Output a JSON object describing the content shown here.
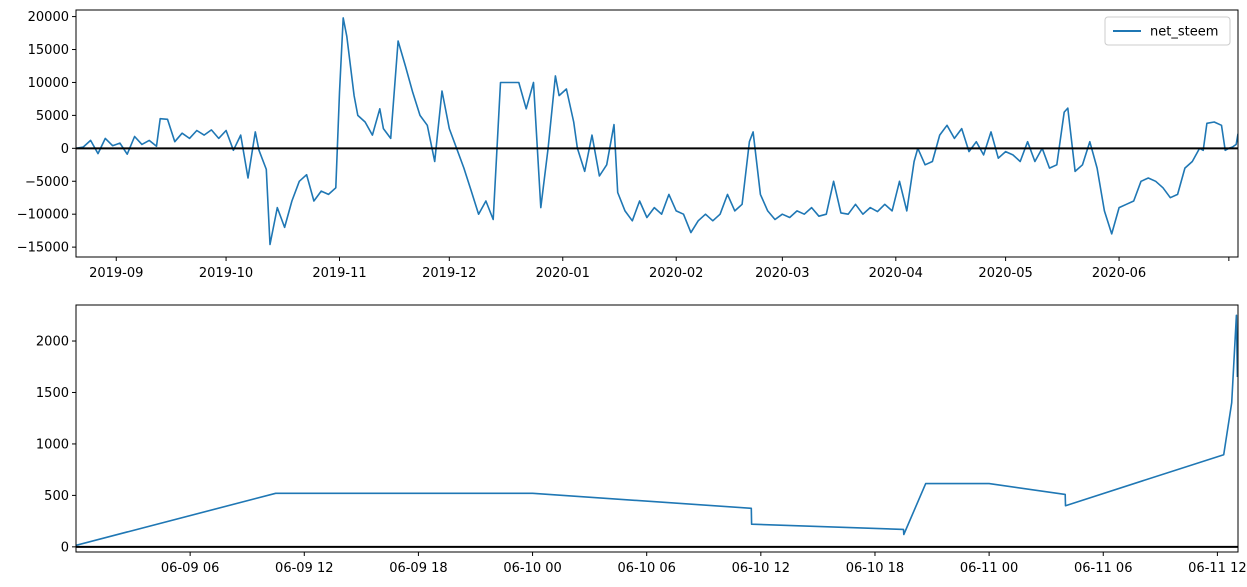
{
  "chart_data": [
    {
      "type": "line",
      "legend": {
        "position": "upper right",
        "entries": [
          "net_steem"
        ]
      },
      "series": [
        {
          "name": "net_steem",
          "color": "#1f77b4",
          "points": [
            [
              "2019-08-21",
              0
            ],
            [
              "2019-08-23",
              200
            ],
            [
              "2019-08-25",
              1200
            ],
            [
              "2019-08-27",
              -800
            ],
            [
              "2019-08-29",
              1500
            ],
            [
              "2019-08-31",
              400
            ],
            [
              "2019-09-02",
              800
            ],
            [
              "2019-09-04",
              -900
            ],
            [
              "2019-09-06",
              1800
            ],
            [
              "2019-09-08",
              600
            ],
            [
              "2019-09-10",
              1200
            ],
            [
              "2019-09-12",
              300
            ],
            [
              "2019-09-13",
              4500
            ],
            [
              "2019-09-15",
              4400
            ],
            [
              "2019-09-17",
              1000
            ],
            [
              "2019-09-19",
              2300
            ],
            [
              "2019-09-21",
              1500
            ],
            [
              "2019-09-23",
              2700
            ],
            [
              "2019-09-25",
              2000
            ],
            [
              "2019-09-27",
              2800
            ],
            [
              "2019-09-29",
              1500
            ],
            [
              "2019-10-01",
              2700
            ],
            [
              "2019-10-03",
              -300
            ],
            [
              "2019-10-05",
              2000
            ],
            [
              "2019-10-07",
              -4500
            ],
            [
              "2019-10-09",
              2500
            ],
            [
              "2019-10-10",
              -300
            ],
            [
              "2019-10-12",
              -3200
            ],
            [
              "2019-10-13",
              -14600
            ],
            [
              "2019-10-15",
              -9000
            ],
            [
              "2019-10-17",
              -12000
            ],
            [
              "2019-10-19",
              -8000
            ],
            [
              "2019-10-21",
              -5000
            ],
            [
              "2019-10-23",
              -4000
            ],
            [
              "2019-10-25",
              -8000
            ],
            [
              "2019-10-27",
              -6500
            ],
            [
              "2019-10-29",
              -7000
            ],
            [
              "2019-10-31",
              -6000
            ],
            [
              "2019-11-01",
              8500
            ],
            [
              "2019-11-02",
              19800
            ],
            [
              "2019-11-03",
              17000
            ],
            [
              "2019-11-05",
              8000
            ],
            [
              "2019-11-06",
              5000
            ],
            [
              "2019-11-08",
              4000
            ],
            [
              "2019-11-10",
              2000
            ],
            [
              "2019-11-12",
              6000
            ],
            [
              "2019-11-13",
              3000
            ],
            [
              "2019-11-15",
              1500
            ],
            [
              "2019-11-17",
              16300
            ],
            [
              "2019-11-19",
              12500
            ],
            [
              "2019-11-21",
              8500
            ],
            [
              "2019-11-23",
              5000
            ],
            [
              "2019-11-25",
              3500
            ],
            [
              "2019-11-27",
              -2000
            ],
            [
              "2019-11-29",
              8700
            ],
            [
              "2019-12-01",
              3000
            ],
            [
              "2019-12-03",
              0
            ],
            [
              "2019-12-05",
              -3000
            ],
            [
              "2019-12-07",
              -6500
            ],
            [
              "2019-12-09",
              -10000
            ],
            [
              "2019-12-11",
              -8000
            ],
            [
              "2019-12-13",
              -10800
            ],
            [
              "2019-12-15",
              10000
            ],
            [
              "2019-12-18",
              10000
            ],
            [
              "2019-12-20",
              10000
            ],
            [
              "2019-12-22",
              6000
            ],
            [
              "2019-12-24",
              10000
            ],
            [
              "2019-12-26",
              -9000
            ],
            [
              "2019-12-28",
              0
            ],
            [
              "2019-12-30",
              11000
            ],
            [
              "2019-12-31",
              8000
            ],
            [
              "2020-01-02",
              9000
            ],
            [
              "2020-01-04",
              4000
            ],
            [
              "2020-01-05",
              0
            ],
            [
              "2020-01-07",
              -3500
            ],
            [
              "2020-01-09",
              2000
            ],
            [
              "2020-01-11",
              -4200
            ],
            [
              "2020-01-13",
              -2500
            ],
            [
              "2020-01-15",
              3600
            ],
            [
              "2020-01-16",
              -6700
            ],
            [
              "2020-01-18",
              -9500
            ],
            [
              "2020-01-20",
              -11000
            ],
            [
              "2020-01-22",
              -8000
            ],
            [
              "2020-01-24",
              -10500
            ],
            [
              "2020-01-26",
              -9000
            ],
            [
              "2020-01-28",
              -10000
            ],
            [
              "2020-01-30",
              -7000
            ],
            [
              "2020-02-01",
              -9500
            ],
            [
              "2020-02-03",
              -10000
            ],
            [
              "2020-02-05",
              -12800
            ],
            [
              "2020-02-07",
              -11000
            ],
            [
              "2020-02-09",
              -10000
            ],
            [
              "2020-02-11",
              -11000
            ],
            [
              "2020-02-13",
              -10000
            ],
            [
              "2020-02-15",
              -7000
            ],
            [
              "2020-02-17",
              -9500
            ],
            [
              "2020-02-19",
              -8500
            ],
            [
              "2020-02-21",
              1000
            ],
            [
              "2020-02-22",
              2500
            ],
            [
              "2020-02-24",
              -7000
            ],
            [
              "2020-02-26",
              -9500
            ],
            [
              "2020-02-28",
              -10800
            ],
            [
              "2020-03-01",
              -10000
            ],
            [
              "2020-03-03",
              -10500
            ],
            [
              "2020-03-05",
              -9500
            ],
            [
              "2020-03-07",
              -10000
            ],
            [
              "2020-03-09",
              -9000
            ],
            [
              "2020-03-11",
              -10300
            ],
            [
              "2020-03-13",
              -10000
            ],
            [
              "2020-03-15",
              -5000
            ],
            [
              "2020-03-17",
              -9800
            ],
            [
              "2020-03-19",
              -10000
            ],
            [
              "2020-03-21",
              -8500
            ],
            [
              "2020-03-23",
              -10000
            ],
            [
              "2020-03-25",
              -9000
            ],
            [
              "2020-03-27",
              -9600
            ],
            [
              "2020-03-29",
              -8500
            ],
            [
              "2020-03-31",
              -9500
            ],
            [
              "2020-04-02",
              -5000
            ],
            [
              "2020-04-04",
              -9500
            ],
            [
              "2020-04-06",
              -2000
            ],
            [
              "2020-04-07",
              0
            ],
            [
              "2020-04-09",
              -2500
            ],
            [
              "2020-04-11",
              -2000
            ],
            [
              "2020-04-13",
              2000
            ],
            [
              "2020-04-15",
              3500
            ],
            [
              "2020-04-17",
              1500
            ],
            [
              "2020-04-19",
              3000
            ],
            [
              "2020-04-21",
              -500
            ],
            [
              "2020-04-23",
              1000
            ],
            [
              "2020-04-25",
              -1000
            ],
            [
              "2020-04-27",
              2500
            ],
            [
              "2020-04-29",
              -1500
            ],
            [
              "2020-05-01",
              -500
            ],
            [
              "2020-05-03",
              -1000
            ],
            [
              "2020-05-05",
              -2000
            ],
            [
              "2020-05-07",
              1000
            ],
            [
              "2020-05-09",
              -2000
            ],
            [
              "2020-05-11",
              0
            ],
            [
              "2020-05-13",
              -3000
            ],
            [
              "2020-05-15",
              -2500
            ],
            [
              "2020-05-17",
              5500
            ],
            [
              "2020-05-18",
              6100
            ],
            [
              "2020-05-20",
              -3500
            ],
            [
              "2020-05-22",
              -2500
            ],
            [
              "2020-05-24",
              1000
            ],
            [
              "2020-05-26",
              -3000
            ],
            [
              "2020-05-28",
              -9500
            ],
            [
              "2020-05-30",
              -13000
            ],
            [
              "2020-06-01",
              -9000
            ],
            [
              "2020-06-03",
              -8500
            ],
            [
              "2020-06-05",
              -8000
            ],
            [
              "2020-06-07",
              -5000
            ],
            [
              "2020-06-09",
              -4500
            ],
            [
              "2020-06-11",
              -5000
            ],
            [
              "2020-06-13",
              -6000
            ],
            [
              "2020-06-15",
              -7500
            ],
            [
              "2020-06-17",
              -7000
            ],
            [
              "2020-06-19",
              -3000
            ],
            [
              "2020-06-21",
              -2000
            ],
            [
              "2020-06-23",
              0
            ],
            [
              "2020-06-24",
              -300
            ],
            [
              "2020-06-25",
              3800
            ],
            [
              "2020-06-27",
              4000
            ],
            [
              "2020-06-29",
              3500
            ],
            [
              "2020-06-30",
              -300
            ],
            [
              "2020-07-01",
              0
            ],
            [
              "2020-07-02",
              200
            ],
            [
              "2020-07-03",
              600
            ],
            [
              "2020-07-03T12:00",
              2200
            ]
          ]
        }
      ],
      "xaxis": {
        "type": "date",
        "range": [
          "2019-08-21",
          "2020-07-03T12:00"
        ],
        "ticks": [
          "2019-09-01",
          "2019-10-01",
          "2019-11-01",
          "2019-12-01",
          "2020-01-01",
          "2020-02-01",
          "2020-03-01",
          "2020-04-01",
          "2020-05-01",
          "2020-06-01",
          "2020-07-01"
        ],
        "tick_labels": [
          "2019-09",
          "2019-10",
          "2019-11",
          "2019-12",
          "2020-01",
          "2020-02",
          "2020-03",
          "2020-04",
          "2020-05",
          "2020-06",
          ""
        ]
      },
      "yaxis": {
        "range": [
          -16500,
          21000
        ],
        "ticks": [
          -15000,
          -10000,
          -5000,
          0,
          5000,
          10000,
          15000,
          20000
        ],
        "tick_labels": [
          "−15000",
          "−10000",
          "−5000",
          "0",
          "5000",
          "10000",
          "15000",
          "20000"
        ]
      },
      "hline": {
        "y": 0,
        "color": "#000000"
      }
    },
    {
      "type": "line",
      "series": [
        {
          "color": "#1f77b4",
          "points": [
            [
              "2020-06-09T00:00",
              15
            ],
            [
              "2020-06-09T10:30",
              520
            ],
            [
              "2020-06-10T00:00",
              520
            ],
            [
              "2020-06-10T11:30",
              375
            ],
            [
              "2020-06-10T11:31",
              220
            ],
            [
              "2020-06-10T19:30",
              170
            ],
            [
              "2020-06-10T19:31",
              120
            ],
            [
              "2020-06-10T20:40",
              615
            ],
            [
              "2020-06-11T00:00",
              615
            ],
            [
              "2020-06-11T04:00",
              510
            ],
            [
              "2020-06-11T04:01",
              400
            ],
            [
              "2020-06-11T12:20",
              895
            ],
            [
              "2020-06-11T12:45",
              1400
            ],
            [
              "2020-06-11T13:00",
              2250
            ],
            [
              "2020-06-11T13:03",
              1650
            ]
          ]
        }
      ],
      "xaxis": {
        "type": "date",
        "range": [
          "2020-06-09T00:00",
          "2020-06-11T13:05"
        ],
        "ticks": [
          "2020-06-09T06:00",
          "2020-06-09T12:00",
          "2020-06-09T18:00",
          "2020-06-10T00:00",
          "2020-06-10T06:00",
          "2020-06-10T12:00",
          "2020-06-10T18:00",
          "2020-06-11T00:00",
          "2020-06-11T06:00",
          "2020-06-11T12:00"
        ],
        "tick_labels": [
          "06-09 06",
          "06-09 12",
          "06-09 18",
          "06-10 00",
          "06-10 06",
          "06-10 12",
          "06-10 18",
          "06-11 00",
          "06-11 06",
          "06-11 12"
        ]
      },
      "yaxis": {
        "range": [
          -50,
          2350
        ],
        "ticks": [
          0,
          500,
          1000,
          1500,
          2000
        ],
        "tick_labels": [
          "0",
          "500",
          "1000",
          "1500",
          "2000"
        ]
      },
      "hline": {
        "y": 0,
        "color": "#000000"
      }
    }
  ]
}
